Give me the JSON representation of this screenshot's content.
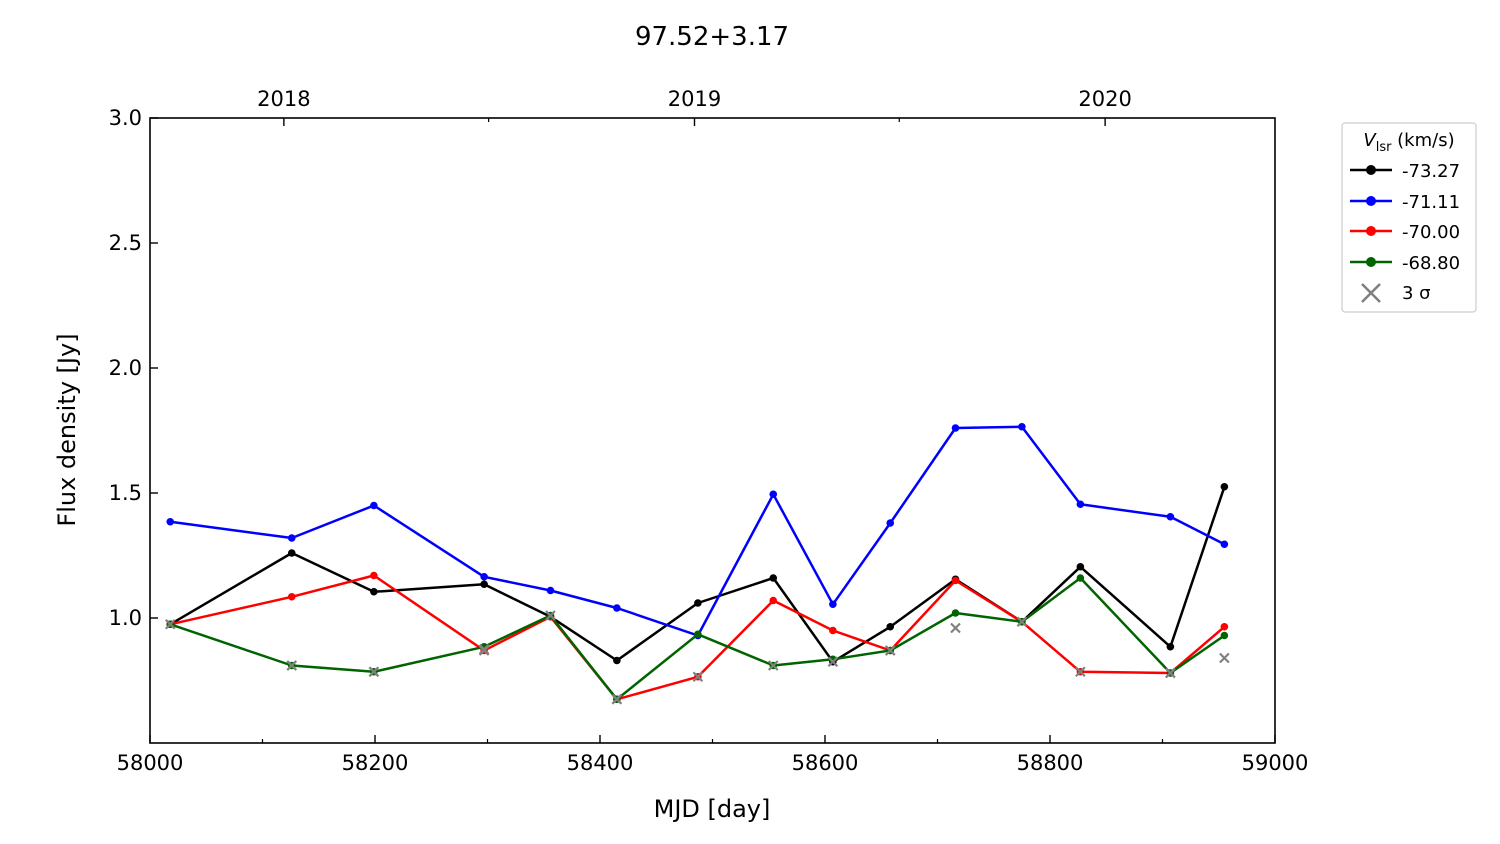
{
  "chart_data": {
    "type": "line",
    "title": "97.52+3.17",
    "xlabel": "MJD [day]",
    "ylabel": "Flux density [Jy]",
    "xlim": [
      58000,
      59000
    ],
    "ylim": [
      0.5,
      3.0
    ],
    "xticks": [
      58000,
      58200,
      58400,
      58600,
      58800,
      59000
    ],
    "yticks": [
      1.0,
      1.5,
      2.0,
      2.5,
      3.0
    ],
    "x_minor_ticks": [
      58100,
      58300,
      58500,
      58700,
      58900
    ],
    "top_axis": {
      "ticks": [
        {
          "label": "2018",
          "mjd": 58119
        },
        {
          "label": "2019",
          "mjd": 58484
        },
        {
          "label": "2020",
          "mjd": 58849
        }
      ],
      "minor_ticks": [
        58301,
        58666
      ]
    },
    "grid": false,
    "legend": {
      "placement": "outside-top-right",
      "title_main": "V",
      "title_sub": "lsr",
      "title_unit": " (km/s)",
      "upper_limit_label": "3 σ"
    },
    "upper_limit_color": "#808080",
    "series": [
      {
        "name": "-73.27",
        "color": "#000000",
        "points": [
          [
            58018,
            0.975
          ],
          [
            58126,
            1.26
          ],
          [
            58199,
            1.105
          ],
          [
            58297,
            1.135
          ],
          [
            58356,
            1.005
          ],
          [
            58415,
            0.83
          ],
          [
            58487,
            1.06
          ],
          [
            58554,
            1.16
          ],
          [
            58607,
            0.825
          ],
          [
            58658,
            0.965
          ],
          [
            58716,
            1.155
          ],
          [
            58775,
            0.985
          ],
          [
            58827,
            1.205
          ],
          [
            58907,
            0.885
          ],
          [
            58955,
            1.525
          ]
        ],
        "upper_limits": [
          [
            58126,
            0.81
          ],
          [
            58199,
            0.785
          ],
          [
            58297,
            0.875
          ],
          [
            58607,
            0.825
          ],
          [
            58716,
            0.96
          ],
          [
            58955,
            0.84
          ]
        ]
      },
      {
        "name": "-71.11",
        "color": "#0000ff",
        "points": [
          [
            58018,
            1.385
          ],
          [
            58126,
            1.32
          ],
          [
            58199,
            1.45
          ],
          [
            58297,
            1.165
          ],
          [
            58356,
            1.11
          ],
          [
            58415,
            1.04
          ],
          [
            58487,
            0.93
          ],
          [
            58554,
            1.495
          ],
          [
            58607,
            1.055
          ],
          [
            58658,
            1.38
          ],
          [
            58716,
            1.76
          ],
          [
            58775,
            1.765
          ],
          [
            58827,
            1.455
          ],
          [
            58907,
            1.405
          ],
          [
            58955,
            1.295
          ]
        ]
      },
      {
        "name": "-70.00",
        "color": "#ff0000",
        "points": [
          [
            58018,
            0.975
          ],
          [
            58126,
            1.085
          ],
          [
            58199,
            1.17
          ],
          [
            58297,
            0.87
          ],
          [
            58356,
            1.005
          ],
          [
            58415,
            0.675
          ],
          [
            58487,
            0.765
          ],
          [
            58554,
            1.07
          ],
          [
            58607,
            0.95
          ],
          [
            58658,
            0.87
          ],
          [
            58716,
            1.15
          ],
          [
            58775,
            0.985
          ],
          [
            58827,
            0.785
          ],
          [
            58907,
            0.78
          ],
          [
            58955,
            0.965
          ]
        ],
        "upper_limits": [
          [
            58297,
            0.87
          ],
          [
            58415,
            0.675
          ],
          [
            58487,
            0.765
          ],
          [
            58658,
            0.87
          ],
          [
            58827,
            0.785
          ],
          [
            58907,
            0.78
          ]
        ]
      },
      {
        "name": "-68.80",
        "color": "#006400",
        "points": [
          [
            58018,
            0.975
          ],
          [
            58126,
            0.81
          ],
          [
            58199,
            0.785
          ],
          [
            58297,
            0.885
          ],
          [
            58356,
            1.01
          ],
          [
            58415,
            0.675
          ],
          [
            58487,
            0.935
          ],
          [
            58554,
            0.81
          ],
          [
            58607,
            0.835
          ],
          [
            58658,
            0.87
          ],
          [
            58716,
            1.02
          ],
          [
            58775,
            0.985
          ],
          [
            58827,
            1.16
          ],
          [
            58907,
            0.78
          ],
          [
            58955,
            0.93
          ]
        ],
        "upper_limits": [
          [
            58018,
            0.975
          ],
          [
            58126,
            0.81
          ],
          [
            58199,
            0.785
          ],
          [
            58356,
            1.01
          ],
          [
            58415,
            0.675
          ],
          [
            58554,
            0.81
          ],
          [
            58658,
            0.87
          ],
          [
            58775,
            0.985
          ],
          [
            58907,
            0.78
          ]
        ]
      }
    ]
  }
}
